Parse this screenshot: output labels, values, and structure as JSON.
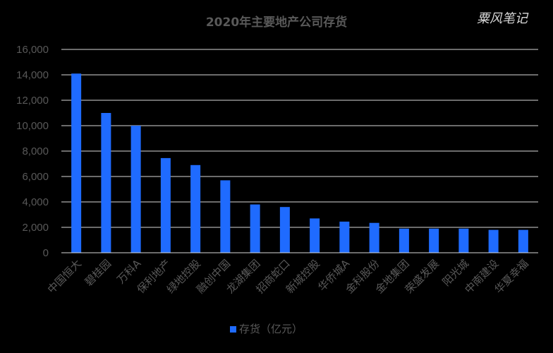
{
  "chart_data": {
    "type": "bar",
    "title": "2020年主要地产公司存货",
    "watermark": "粟风笔记",
    "categories": [
      "中国恒大",
      "碧桂园",
      "万科A",
      "保利地产",
      "绿地控股",
      "融创中国",
      "龙湖集团",
      "招商蛇口",
      "新城控股",
      "华侨城A",
      "金科股份",
      "金地集团",
      "荣盛发展",
      "阳光城",
      "中南建设",
      "华夏幸福"
    ],
    "series": [
      {
        "name": "存货（亿元）",
        "values": [
          14100,
          11000,
          10000,
          7450,
          6900,
          5700,
          3800,
          3600,
          2700,
          2450,
          2350,
          1900,
          1900,
          1900,
          1800,
          1800
        ]
      }
    ],
    "ylim": [
      0,
      16000
    ],
    "yticks": [
      "0",
      "2,000",
      "4,000",
      "6,000",
      "8,000",
      "10,000",
      "12,000",
      "14,000",
      "16,000"
    ],
    "grid": true,
    "legend": "bottom",
    "colors": {
      "bar": "#1f6bff",
      "grid": "#d9d9d9",
      "text": "#595959",
      "background": "#000000"
    }
  }
}
